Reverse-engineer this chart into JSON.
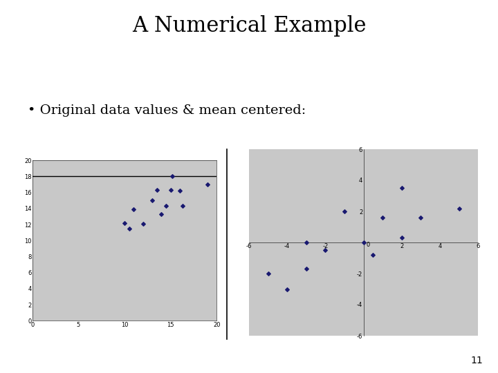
{
  "title": "A Numerical Example",
  "bullet": "• Original data values & mean centered:",
  "page_num": "11",
  "bg_color": "#ffffff",
  "plot_bg_color": "#c8c8c8",
  "point_color": "#191970",
  "mean_line_y": 18,
  "plot1": {
    "x": [
      10.0,
      10.5,
      11.0,
      12.0,
      13.0,
      13.5,
      14.0,
      14.5,
      15.0,
      15.2,
      16.0,
      16.3,
      19.0
    ],
    "y": [
      12.2,
      11.5,
      13.9,
      12.1,
      15.0,
      16.3,
      13.3,
      14.3,
      16.3,
      18.0,
      16.2,
      14.3,
      17.0
    ],
    "xlim": [
      0,
      20
    ],
    "ylim": [
      0,
      20
    ],
    "xticks": [
      0,
      5,
      10,
      15,
      20
    ],
    "yticks": [
      0,
      2,
      4,
      6,
      8,
      10,
      12,
      14,
      16,
      18,
      20
    ]
  },
  "plot2": {
    "x": [
      -5.0,
      -4.0,
      -3.0,
      -3.0,
      -2.0,
      -1.0,
      0.0,
      0.5,
      1.0,
      2.0,
      2.0,
      3.0,
      5.0
    ],
    "y": [
      -2.0,
      -3.0,
      -1.7,
      0.0,
      -0.5,
      2.0,
      0.0,
      -0.8,
      1.6,
      0.3,
      3.5,
      1.6,
      2.2
    ],
    "xlim": [
      -6,
      6
    ],
    "ylim": [
      -6,
      6
    ],
    "xticks": [
      -6,
      -4,
      -2,
      0,
      2,
      4,
      6
    ],
    "yticks": [
      -6,
      -4,
      -2,
      0,
      2,
      4,
      6
    ]
  },
  "title_fontsize": 22,
  "bullet_fontsize": 14,
  "tick_fontsize": 6,
  "page_fontsize": 10
}
